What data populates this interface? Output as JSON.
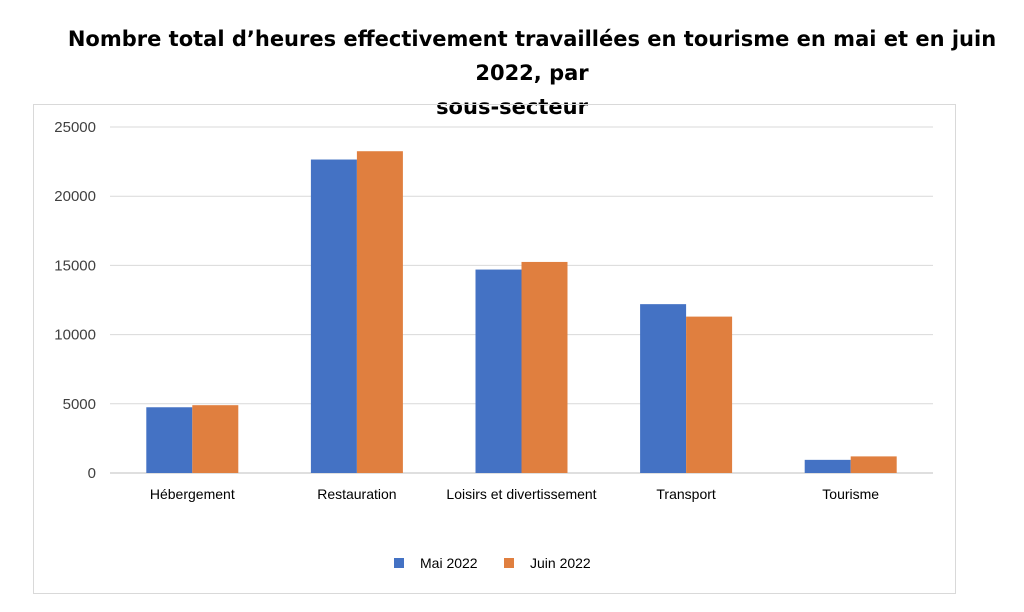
{
  "chart_data": {
    "type": "bar",
    "title_line1": "Nombre total d’heures effectivement travaillées en tourisme en mai et en juin 2022, par",
    "title_line2": "sous-secteur",
    "xlabel": "",
    "ylabel": "",
    "categories": [
      "Hébergement",
      "Restauration",
      "Loisirs et divertissement",
      "Transport",
      "Tourisme"
    ],
    "series": [
      {
        "name": "Mai 2022",
        "color": "#4472c4",
        "values": [
          4750,
          22650,
          14700,
          12200,
          950
        ]
      },
      {
        "name": "Juin 2022",
        "color": "#e07f3f",
        "values": [
          4900,
          23250,
          15250,
          11300,
          1200
        ]
      }
    ],
    "ylim": [
      0,
      25000
    ],
    "yticks": [
      0,
      5000,
      10000,
      15000,
      20000,
      25000
    ],
    "grid": true,
    "legend": "bottom"
  }
}
